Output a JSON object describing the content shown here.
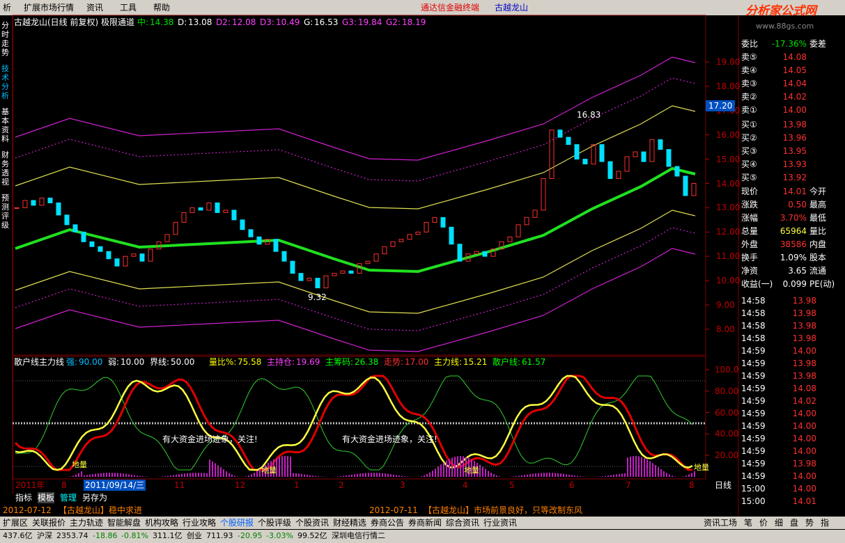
{
  "menu": {
    "items": [
      "析",
      "扩展市场行情",
      "资讯",
      "工具",
      "帮助"
    ],
    "brand": "通达信金融终端",
    "stock": "古越龙山",
    "logo": "分析家公式网",
    "logo_url": "www.88gs.com"
  },
  "sidebar": [
    "分时走势",
    "技术分析",
    "基本资料",
    "财务透视",
    "预测评级"
  ],
  "main_chart": {
    "title": "古越龙山(日线 前复权) 极限通道",
    "indicators": [
      {
        "label": "中:",
        "value": "14.38"
      },
      {
        "label": "D:",
        "value": "13.08"
      },
      {
        "label": "D2:",
        "value": "12.08"
      },
      {
        "label": "D3:",
        "value": "10.49"
      },
      {
        "label": "G:",
        "value": "16.53"
      },
      {
        "label": "G3:",
        "value": "19.84"
      },
      {
        "label": "G2:",
        "value": "18.19"
      }
    ],
    "yticks": [
      {
        "value": 19,
        "label": "19.00"
      },
      {
        "value": 18,
        "label": "18.00"
      },
      {
        "value": 17,
        "label": "17.00"
      },
      {
        "value": 16,
        "label": "16.00"
      },
      {
        "value": 15,
        "label": "15.00"
      },
      {
        "value": 14,
        "label": "14.00"
      },
      {
        "value": 13,
        "label": "13.00"
      },
      {
        "value": 12,
        "label": "12.00"
      },
      {
        "value": 11,
        "label": "11.00"
      },
      {
        "value": 10,
        "label": "10.00"
      },
      {
        "value": 9,
        "label": "9.00"
      },
      {
        "value": 8,
        "label": "8.00"
      }
    ],
    "closes": [
      13.0,
      13.3,
      13.1,
      13.4,
      13.2,
      12.7,
      12.3,
      12.0,
      11.6,
      11.4,
      11.2,
      10.9,
      10.6,
      11.0,
      11.1,
      10.8,
      11.3,
      11.6,
      11.9,
      12.4,
      12.8,
      13.0,
      12.9,
      13.2,
      12.8,
      12.9,
      12.5,
      12.1,
      11.8,
      11.5,
      11.7,
      11.2,
      10.8,
      10.3,
      10.0,
      10.1,
      9.7,
      10.2,
      10.3,
      10.4,
      10.3,
      10.7,
      10.8,
      11.1,
      11.4,
      11.6,
      11.7,
      11.9,
      12.0,
      12.4,
      12.6,
      12.2,
      11.5,
      10.8,
      11.1,
      11.2,
      11.0,
      11.3,
      11.6,
      11.8,
      12.3,
      12.6,
      12.9,
      14.2,
      16.2,
      15.9,
      15.6,
      15.0,
      14.8,
      15.6,
      14.9,
      14.2,
      14.5,
      15.1,
      15.3,
      14.9,
      15.8,
      15.4,
      14.7,
      14.3,
      13.5,
      14.0
    ],
    "high_label": {
      "value": 16.83,
      "label": "16.83"
    },
    "low_label": {
      "value": 9.32,
      "label": "9.32"
    },
    "cursor_price": {
      "value": 17.2,
      "label": "17.20"
    }
  },
  "lower_panel": {
    "title": "散户线主力线",
    "params": [
      {
        "label": "强:",
        "value": "90.00"
      },
      {
        "label": "弱:",
        "value": "10.00"
      },
      {
        "label": "界线:",
        "value": "50.00"
      },
      {
        "label": "量比%:",
        "value": "75.58"
      },
      {
        "label": "主持仓:",
        "value": "19.69"
      },
      {
        "label": "主筹码:",
        "value": "26.38"
      },
      {
        "label": "走势:",
        "value": "17.00"
      },
      {
        "label": "主力线:",
        "value": "15.21"
      },
      {
        "label": "散户线:",
        "value": "61.57"
      }
    ],
    "yticks": [
      {
        "value": 100,
        "label": "100.0"
      },
      {
        "value": 80,
        "label": "80.00"
      },
      {
        "value": 60,
        "label": "60.00"
      },
      {
        "value": 40,
        "label": "40.00"
      },
      {
        "value": 20,
        "label": "20.00"
      }
    ],
    "notes": [
      "有大资金进场迹象，关注!",
      "有大资金进场迹象，关注!"
    ],
    "low_volume": "地量"
  },
  "x_axis": {
    "labels": [
      "2011年",
      "8",
      "11",
      "12",
      "1",
      "2",
      "3",
      "4",
      "5",
      "6",
      "7",
      "8"
    ],
    "cursor_date": "2011/09/14/三",
    "period": "日线"
  },
  "tool_tabs": [
    "指标",
    "模板",
    "管理",
    "另存为"
  ],
  "news": [
    {
      "date": "2012-07-12",
      "text": "【古越龙山】稳中求进"
    },
    {
      "date": "2012-07-11",
      "text": "【古越龙山】市场前景良好，只等改制东风"
    }
  ],
  "bottom_tabs": [
    "扩展区",
    "关联报价",
    "主力轨迹",
    "智能解盘",
    "机构攻略",
    "行业攻略",
    "个股研报",
    "个股评级",
    "个股资讯",
    "财经精选",
    "券商公告",
    "券商新闻",
    "综合资讯",
    "行业资讯"
  ],
  "right_tabs": [
    "资讯工场",
    "笔",
    "价",
    "细",
    "盘",
    "势",
    "指"
  ],
  "status": [
    "437.6亿",
    "沪深",
    "2353.74",
    "-18.86",
    "-0.81%",
    "311.1亿",
    "创业",
    "711.93",
    "-20.95",
    "-3.03%",
    "99.52亿",
    "深圳电信行情二"
  ],
  "quote": {
    "weibi": {
      "label": "委比",
      "value": "-17.36%",
      "label2": "委差"
    },
    "asks": [
      {
        "label": "卖⑤",
        "price": "14.08"
      },
      {
        "label": "卖④",
        "price": "14.05"
      },
      {
        "label": "卖③",
        "price": "14.04"
      },
      {
        "label": "卖②",
        "price": "14.02"
      },
      {
        "label": "卖①",
        "price": "14.00"
      }
    ],
    "bids": [
      {
        "label": "买①",
        "price": "13.98"
      },
      {
        "label": "买②",
        "price": "13.96"
      },
      {
        "label": "买③",
        "price": "13.95"
      },
      {
        "label": "买④",
        "price": "13.93"
      },
      {
        "label": "买⑤",
        "price": "13.92"
      }
    ],
    "stats": [
      {
        "label": "现价",
        "value": "14.01",
        "label2": "今开"
      },
      {
        "label": "涨跌",
        "value": "0.50",
        "label2": "最高"
      },
      {
        "label": "涨幅",
        "value": "3.70%",
        "label2": "最低"
      },
      {
        "label": "总量",
        "value": "65964",
        "label2": "量比"
      },
      {
        "label": "外盘",
        "value": "38586",
        "label2": "内盘"
      },
      {
        "label": "换手",
        "value": "1.09%",
        "label2": "股本"
      },
      {
        "label": "净资",
        "value": "3.65",
        "label2": "流通"
      },
      {
        "label": "收益(一)",
        "value": "0.099",
        "label2": "PE(动)"
      }
    ],
    "ticks": [
      {
        "time": "14:58",
        "price": "13.98"
      },
      {
        "time": "14:58",
        "price": "13.98"
      },
      {
        "time": "14:58",
        "price": "13.98"
      },
      {
        "time": "14:58",
        "price": "13.98"
      },
      {
        "time": "14:59",
        "price": "14.00"
      },
      {
        "time": "14:59",
        "price": "13.98"
      },
      {
        "time": "14:59",
        "price": "13.98"
      },
      {
        "time": "14:59",
        "price": "14.08"
      },
      {
        "time": "14:59",
        "price": "14.02"
      },
      {
        "time": "14:59",
        "price": "14.00"
      },
      {
        "time": "14:59",
        "price": "14.00"
      },
      {
        "time": "14:59",
        "price": "14.00"
      },
      {
        "time": "14:59",
        "price": "14.00"
      },
      {
        "time": "14:59",
        "price": "13.98"
      },
      {
        "time": "14:59",
        "price": "14.00"
      },
      {
        "time": "15:00",
        "price": "14.00"
      },
      {
        "time": "15:00",
        "price": "14.01"
      }
    ]
  }
}
